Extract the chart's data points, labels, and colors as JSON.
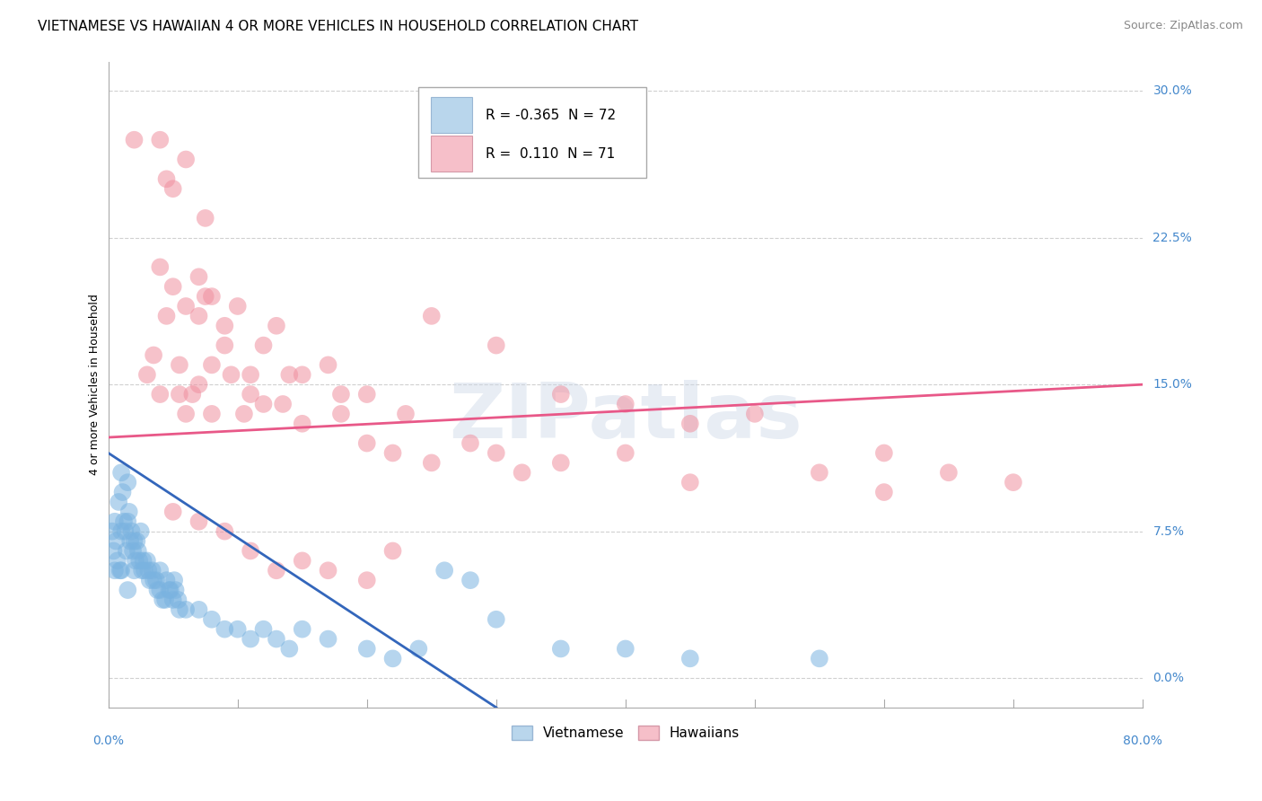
{
  "title": "VIETNAMESE VS HAWAIIAN 4 OR MORE VEHICLES IN HOUSEHOLD CORRELATION CHART",
  "source": "Source: ZipAtlas.com",
  "ylabel": "4 or more Vehicles in Household",
  "ytick_labels": [
    "0.0%",
    "7.5%",
    "15.0%",
    "22.5%",
    "30.0%"
  ],
  "ytick_values": [
    0.0,
    7.5,
    15.0,
    22.5,
    30.0
  ],
  "xtick_labels": [
    "0.0%",
    "80.0%"
  ],
  "xtick_positions": [
    0.0,
    80.0
  ],
  "xmin": 0.0,
  "xmax": 80.0,
  "ymin": -1.5,
  "ymax": 31.5,
  "watermark_text": "ZIPatlas",
  "vietnamese_color": "#7ab3e0",
  "hawaiian_color": "#f090a0",
  "viet_legend_color": "#a8cce8",
  "haw_legend_color": "#f4b0bc",
  "viet_line_color": "#3366bb",
  "haw_line_color": "#e85888",
  "grid_color": "#d0d0d0",
  "background_color": "#ffffff",
  "title_fontsize": 11,
  "source_fontsize": 9,
  "axis_label_fontsize": 9,
  "tick_fontsize": 10,
  "legend_fontsize": 11,
  "viet_line_x0": 0.0,
  "viet_line_y0": 11.5,
  "viet_line_x1": 30.0,
  "viet_line_y1": -1.5,
  "haw_line_x0": 0.0,
  "haw_line_y0": 12.3,
  "haw_line_x1": 80.0,
  "haw_line_y1": 15.0,
  "vietnamese_scatter": [
    [
      0.3,
      7.5
    ],
    [
      0.4,
      6.5
    ],
    [
      0.5,
      8.0
    ],
    [
      0.5,
      5.5
    ],
    [
      0.6,
      7.0
    ],
    [
      0.7,
      6.0
    ],
    [
      0.8,
      9.0
    ],
    [
      0.9,
      5.5
    ],
    [
      1.0,
      10.5
    ],
    [
      1.0,
      7.5
    ],
    [
      1.0,
      5.5
    ],
    [
      1.1,
      9.5
    ],
    [
      1.2,
      8.0
    ],
    [
      1.3,
      7.5
    ],
    [
      1.4,
      6.5
    ],
    [
      1.5,
      10.0
    ],
    [
      1.5,
      8.0
    ],
    [
      1.5,
      4.5
    ],
    [
      1.6,
      8.5
    ],
    [
      1.7,
      7.0
    ],
    [
      1.8,
      7.5
    ],
    [
      1.9,
      6.5
    ],
    [
      2.0,
      7.0
    ],
    [
      2.0,
      5.5
    ],
    [
      2.1,
      6.0
    ],
    [
      2.2,
      7.0
    ],
    [
      2.3,
      6.5
    ],
    [
      2.4,
      6.0
    ],
    [
      2.5,
      7.5
    ],
    [
      2.6,
      5.5
    ],
    [
      2.7,
      6.0
    ],
    [
      2.8,
      5.5
    ],
    [
      3.0,
      6.0
    ],
    [
      3.1,
      5.5
    ],
    [
      3.2,
      5.0
    ],
    [
      3.4,
      5.5
    ],
    [
      3.5,
      5.0
    ],
    [
      3.7,
      5.0
    ],
    [
      3.8,
      4.5
    ],
    [
      4.0,
      4.5
    ],
    [
      4.0,
      5.5
    ],
    [
      4.2,
      4.0
    ],
    [
      4.4,
      4.0
    ],
    [
      4.5,
      5.0
    ],
    [
      4.7,
      4.5
    ],
    [
      4.8,
      4.5
    ],
    [
      5.0,
      4.0
    ],
    [
      5.1,
      5.0
    ],
    [
      5.2,
      4.5
    ],
    [
      5.4,
      4.0
    ],
    [
      5.5,
      3.5
    ],
    [
      6.0,
      3.5
    ],
    [
      7.0,
      3.5
    ],
    [
      8.0,
      3.0
    ],
    [
      9.0,
      2.5
    ],
    [
      10.0,
      2.5
    ],
    [
      11.0,
      2.0
    ],
    [
      12.0,
      2.5
    ],
    [
      13.0,
      2.0
    ],
    [
      14.0,
      1.5
    ],
    [
      15.0,
      2.5
    ],
    [
      17.0,
      2.0
    ],
    [
      20.0,
      1.5
    ],
    [
      22.0,
      1.0
    ],
    [
      24.0,
      1.5
    ],
    [
      26.0,
      5.5
    ],
    [
      28.0,
      5.0
    ],
    [
      30.0,
      3.0
    ],
    [
      35.0,
      1.5
    ],
    [
      40.0,
      1.5
    ],
    [
      45.0,
      1.0
    ],
    [
      55.0,
      1.0
    ]
  ],
  "hawaiian_scatter": [
    [
      2.0,
      27.5
    ],
    [
      4.0,
      27.5
    ],
    [
      4.5,
      25.5
    ],
    [
      6.0,
      26.5
    ],
    [
      5.0,
      25.0
    ],
    [
      7.5,
      23.5
    ],
    [
      4.0,
      21.0
    ],
    [
      7.0,
      20.5
    ],
    [
      5.0,
      20.0
    ],
    [
      7.5,
      19.5
    ],
    [
      8.0,
      19.5
    ],
    [
      6.0,
      19.0
    ],
    [
      7.0,
      18.5
    ],
    [
      9.0,
      18.0
    ],
    [
      13.0,
      18.0
    ],
    [
      10.0,
      19.0
    ],
    [
      12.0,
      17.0
    ],
    [
      14.0,
      15.5
    ],
    [
      9.0,
      17.0
    ],
    [
      4.5,
      18.5
    ],
    [
      3.5,
      16.5
    ],
    [
      5.5,
      16.0
    ],
    [
      8.0,
      16.0
    ],
    [
      11.0,
      15.5
    ],
    [
      3.0,
      15.5
    ],
    [
      15.0,
      15.5
    ],
    [
      17.0,
      16.0
    ],
    [
      7.0,
      15.0
    ],
    [
      9.5,
      15.5
    ],
    [
      6.5,
      14.5
    ],
    [
      5.5,
      14.5
    ],
    [
      11.0,
      14.5
    ],
    [
      4.0,
      14.5
    ],
    [
      13.5,
      14.0
    ],
    [
      18.0,
      14.5
    ],
    [
      20.0,
      14.5
    ],
    [
      25.0,
      18.5
    ],
    [
      30.0,
      17.0
    ],
    [
      35.0,
      14.5
    ],
    [
      40.0,
      14.0
    ],
    [
      45.0,
      13.0
    ],
    [
      50.0,
      13.5
    ],
    [
      55.0,
      10.5
    ],
    [
      60.0,
      11.5
    ],
    [
      65.0,
      10.5
    ],
    [
      6.0,
      13.5
    ],
    [
      8.0,
      13.5
    ],
    [
      10.5,
      13.5
    ],
    [
      12.0,
      14.0
    ],
    [
      15.0,
      13.0
    ],
    [
      18.0,
      13.5
    ],
    [
      20.0,
      12.0
    ],
    [
      22.0,
      11.5
    ],
    [
      23.0,
      13.5
    ],
    [
      25.0,
      11.0
    ],
    [
      28.0,
      12.0
    ],
    [
      30.0,
      11.5
    ],
    [
      32.0,
      10.5
    ],
    [
      35.0,
      11.0
    ],
    [
      40.0,
      11.5
    ],
    [
      45.0,
      10.0
    ],
    [
      5.0,
      8.5
    ],
    [
      7.0,
      8.0
    ],
    [
      9.0,
      7.5
    ],
    [
      11.0,
      6.5
    ],
    [
      13.0,
      5.5
    ],
    [
      15.0,
      6.0
    ],
    [
      17.0,
      5.5
    ],
    [
      20.0,
      5.0
    ],
    [
      22.0,
      6.5
    ],
    [
      60.0,
      9.5
    ],
    [
      70.0,
      10.0
    ]
  ]
}
